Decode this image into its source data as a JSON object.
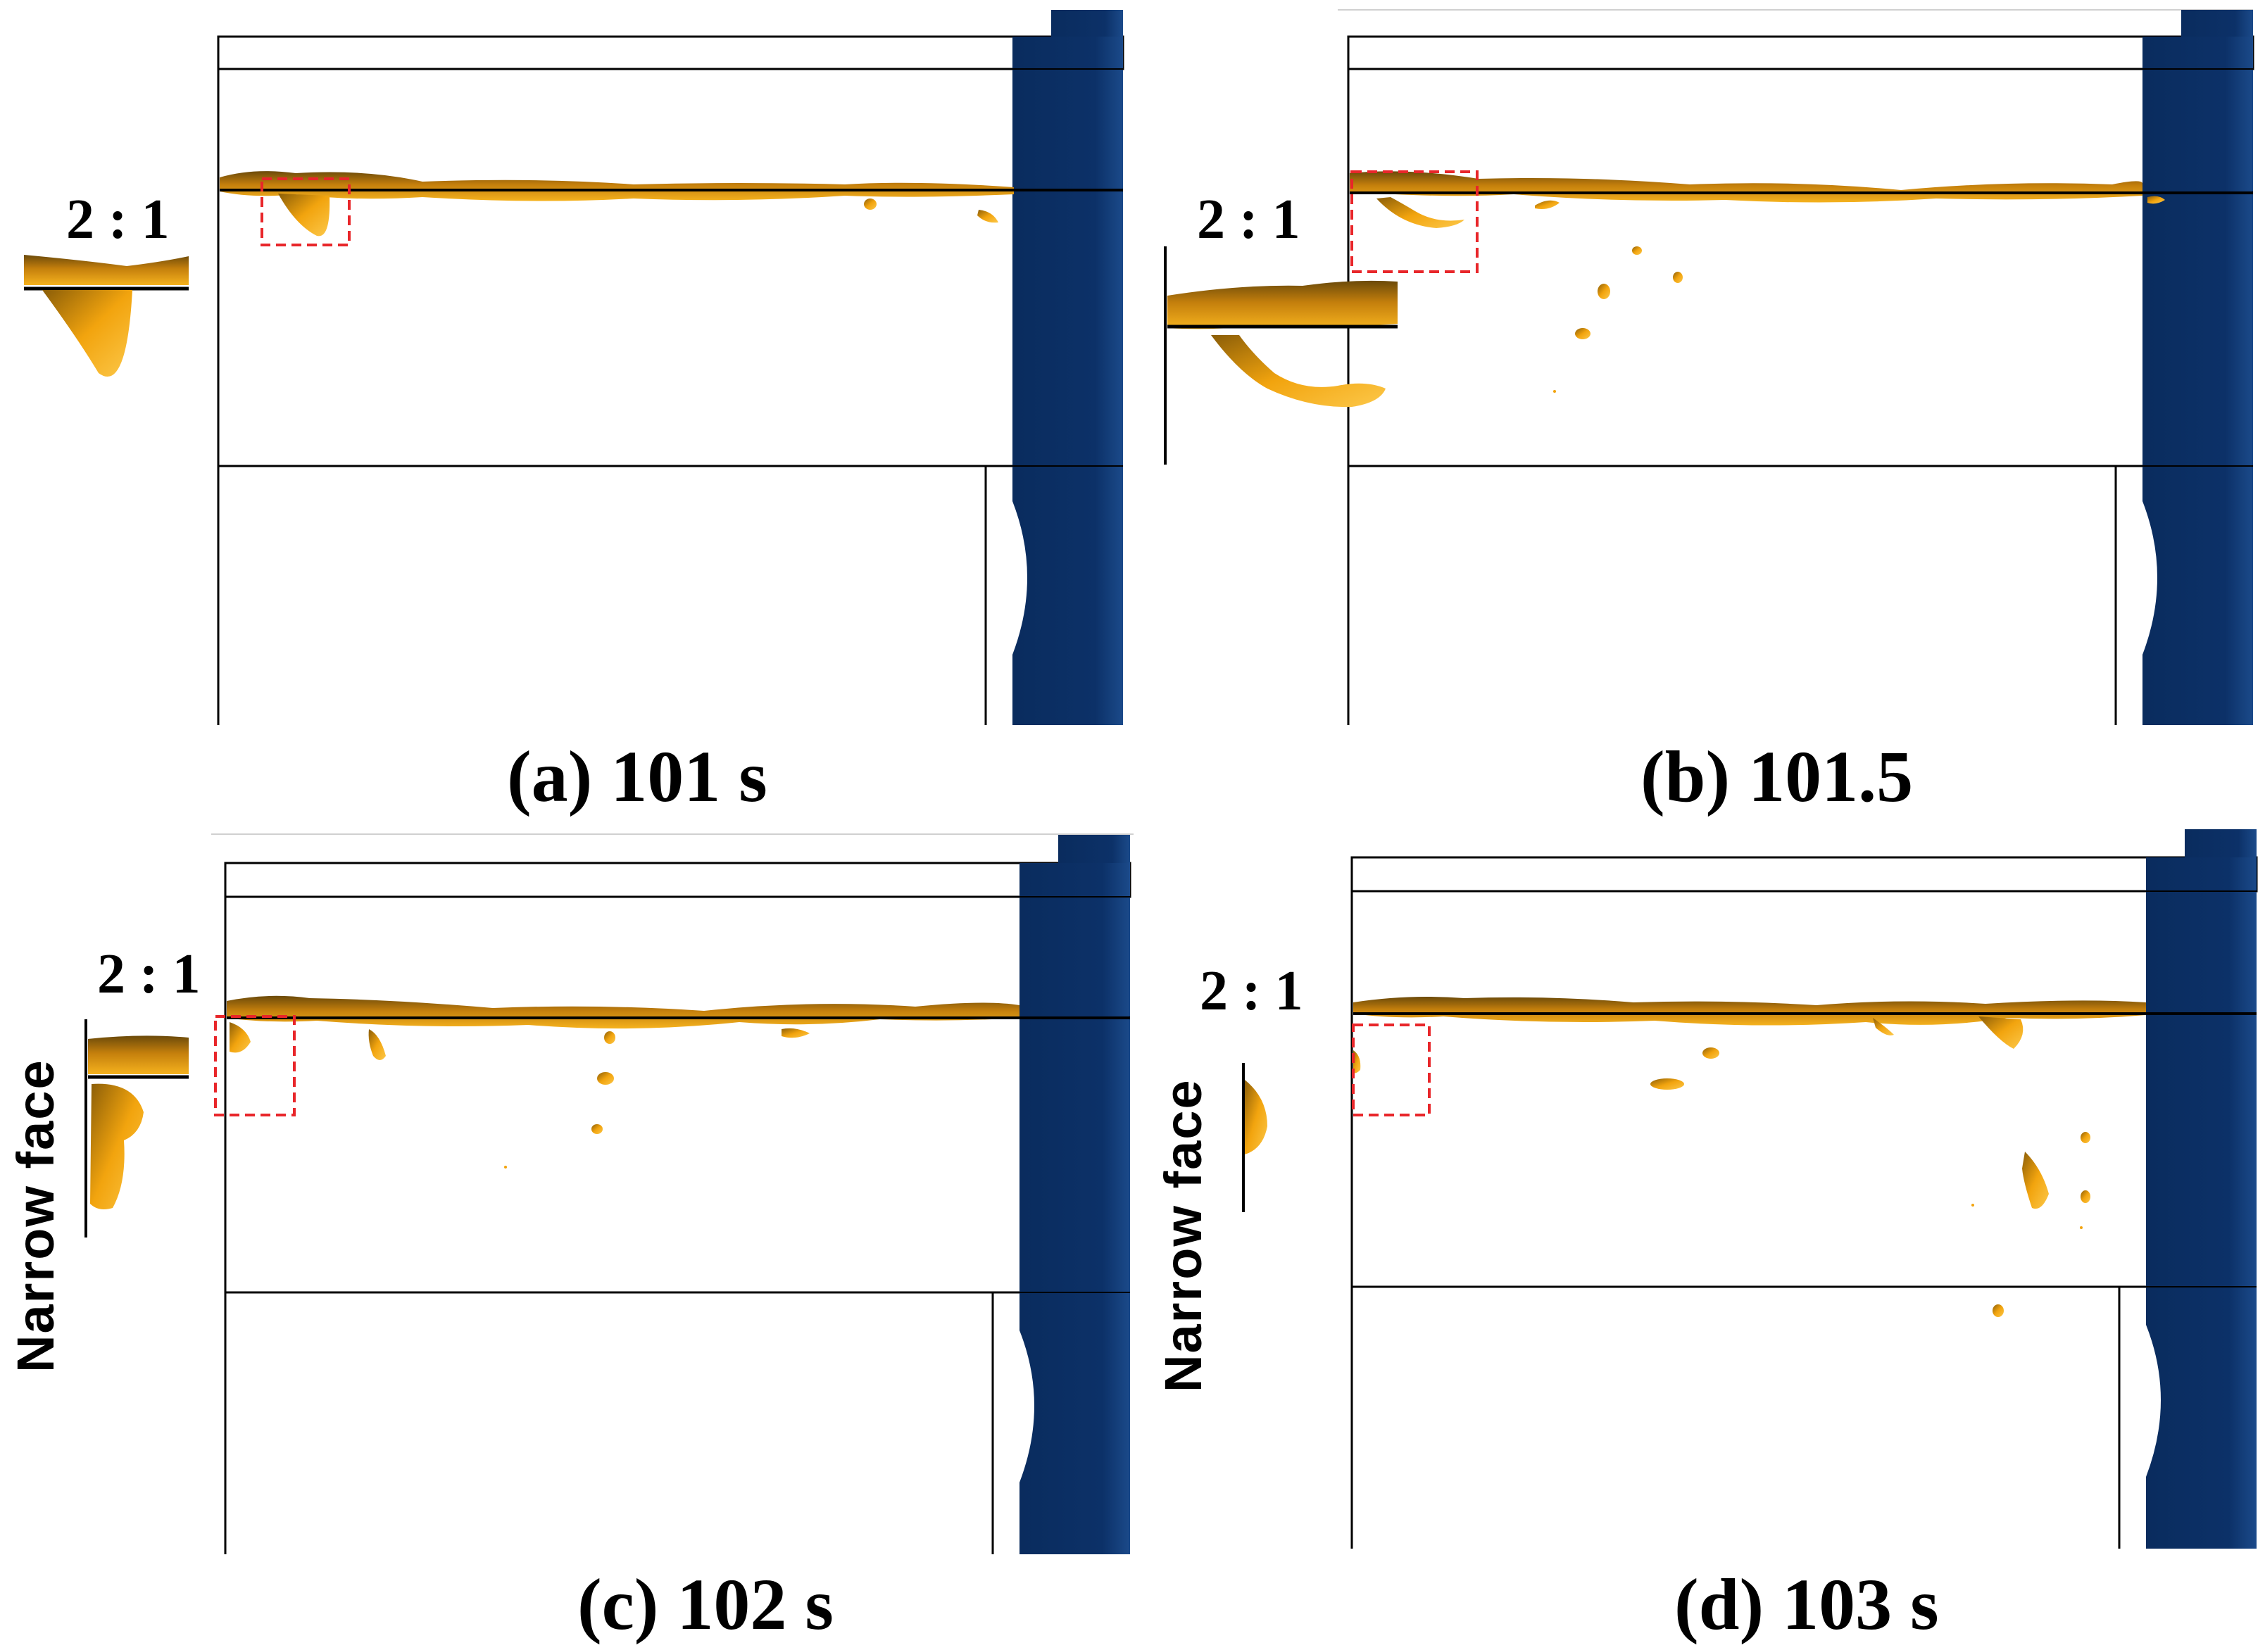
{
  "panels": [
    {
      "id": "a",
      "caption": "(a) 101 s",
      "zoom_label": "2 : 1",
      "side_label": ""
    },
    {
      "id": "b",
      "caption": "(b) 101.5",
      "zoom_label": "2 : 1",
      "side_label": ""
    },
    {
      "id": "c",
      "caption": "(c) 102 s",
      "zoom_label": "2 : 1",
      "side_label": "Narrow  face"
    },
    {
      "id": "d",
      "caption": "(d) 103 s",
      "zoom_label": "2 : 1",
      "side_label": "Narrow  face"
    }
  ],
  "colors": {
    "nozzle": "#0b2f63",
    "nozzle_dark": "#06224a",
    "slag": "#f2a40e",
    "slag_dark": "#6b4a0a",
    "highlight_box": "#e8262a",
    "outline": "#000000"
  }
}
